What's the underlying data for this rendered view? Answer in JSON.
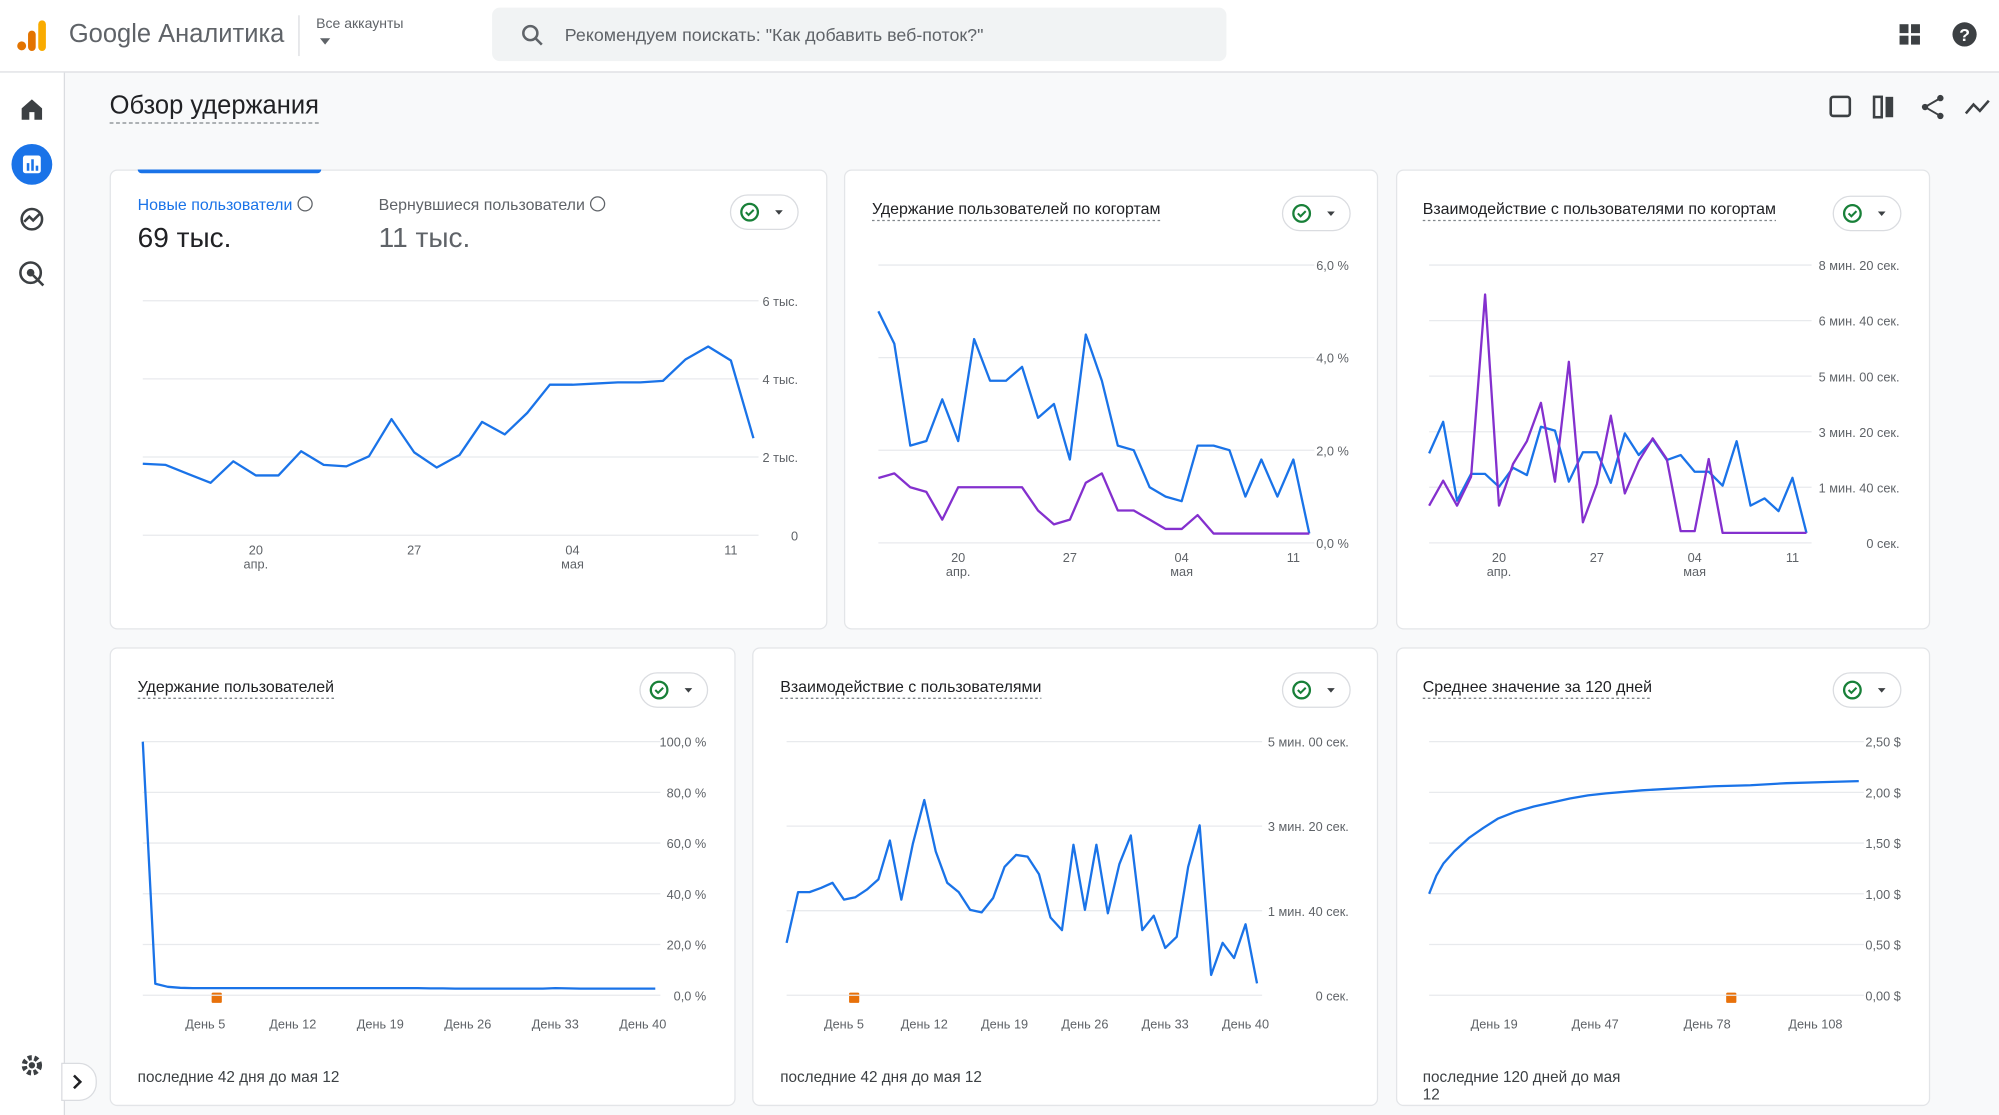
{
  "header": {
    "product": "Google Аналитика",
    "account_label": "Все аккаунты",
    "search_placeholder": "Рекомендуем поискать: \"Как добавить веб-поток?\""
  },
  "page_title": "Обзор удержания",
  "chart_data": [
    {
      "type": "line",
      "metrics": [
        {
          "label": "Новые пользователи",
          "value": "69 тыс."
        },
        {
          "label": "Вернувшиеся пользователи",
          "value": "11 тыс."
        }
      ],
      "categories": [
        null,
        null,
        null,
        null,
        null,
        "20",
        null,
        null,
        null,
        null,
        null,
        null,
        "27",
        null,
        null,
        null,
        null,
        null,
        null,
        "04",
        null,
        null,
        null,
        null,
        null,
        null,
        "11",
        null
      ],
      "category_months": [
        null,
        null,
        null,
        null,
        null,
        "апр.",
        null,
        null,
        null,
        null,
        null,
        null,
        null,
        null,
        null,
        null,
        null,
        null,
        null,
        "мая",
        null,
        null,
        null,
        null,
        null,
        null,
        null,
        null
      ],
      "series": [
        {
          "color": "#1a73e8",
          "values": [
            1830,
            1800,
            1570,
            1340,
            1890,
            1530,
            1530,
            2150,
            1800,
            1760,
            2020,
            2970,
            2120,
            1730,
            2050,
            2900,
            2580,
            3130,
            3850,
            3850,
            3880,
            3910,
            3910,
            3950,
            4500,
            4830,
            4470,
            2480
          ]
        }
      ],
      "ylim": [
        0,
        6000
      ],
      "yticks": [
        0,
        {
          "value": 2000,
          "label": "2 тыс."
        },
        {
          "value": 4000,
          "label": "4 тыс."
        },
        {
          "value": 6000,
          "label": "6 тыс."
        }
      ],
      "grid": true
    },
    {
      "type": "line",
      "title": "Удержание пользователей по когортам",
      "categories": [
        null,
        null,
        null,
        null,
        null,
        "20",
        null,
        null,
        null,
        null,
        null,
        null,
        "27",
        null,
        null,
        null,
        null,
        null,
        null,
        "04",
        null,
        null,
        null,
        null,
        null,
        null,
        "11",
        null
      ],
      "category_months": [
        null,
        null,
        null,
        null,
        null,
        "апр.",
        null,
        null,
        null,
        null,
        null,
        null,
        null,
        null,
        null,
        null,
        null,
        null,
        null,
        "мая",
        null,
        null,
        null,
        null,
        null,
        null,
        null,
        null
      ],
      "series": [
        {
          "color": "#1a73e8",
          "values": [
            5.0,
            4.3,
            2.1,
            2.2,
            3.1,
            2.2,
            4.4,
            3.5,
            3.5,
            3.8,
            2.7,
            3.0,
            1.8,
            4.5,
            3.5,
            2.1,
            2.0,
            1.2,
            1.0,
            0.9,
            2.1,
            2.1,
            2.0,
            1.0,
            1.8,
            1.0,
            1.8,
            0.2
          ]
        },
        {
          "color": "#8430ce",
          "values": [
            1.4,
            1.5,
            1.2,
            1.1,
            0.5,
            1.2,
            1.2,
            1.2,
            1.2,
            1.2,
            0.7,
            0.4,
            0.5,
            1.3,
            1.5,
            0.7,
            0.7,
            0.5,
            0.3,
            0.3,
            0.6,
            0.2,
            0.2,
            0.2,
            0.2,
            0.2,
            0.2,
            0.2
          ]
        }
      ],
      "ylim": [
        0,
        6
      ],
      "yticks": [
        {
          "value": 0,
          "label": "0,0 %"
        },
        {
          "value": 2,
          "label": "2,0 %"
        },
        {
          "value": 4,
          "label": "4,0 %"
        },
        {
          "value": 6,
          "label": "6,0 %"
        }
      ],
      "grid": true
    },
    {
      "type": "line",
      "title": "Взаимодействие с пользователями по когортам",
      "categories": [
        null,
        null,
        null,
        null,
        null,
        "20",
        null,
        null,
        null,
        null,
        null,
        null,
        "27",
        null,
        null,
        null,
        null,
        null,
        null,
        "04",
        null,
        null,
        null,
        null,
        null,
        null,
        "11",
        null
      ],
      "category_months": [
        null,
        null,
        null,
        null,
        null,
        "апр.",
        null,
        null,
        null,
        null,
        null,
        null,
        null,
        null,
        null,
        null,
        null,
        null,
        null,
        "мая",
        null,
        null,
        null,
        null,
        null,
        null,
        null,
        null
      ],
      "series": [
        {
          "color": "#1a73e8",
          "values": [
            161,
            218,
            76,
            124,
            124,
            101,
            135,
            122,
            209,
            202,
            110,
            163,
            163,
            108,
            197,
            158,
            186,
            149,
            158,
            128,
            128,
            103,
            183,
            67,
            80,
            57,
            117,
            18
          ]
        },
        {
          "color": "#8430ce",
          "values": [
            67,
            112,
            67,
            119,
            447,
            67,
            142,
            183,
            252,
            110,
            326,
            37,
            106,
            229,
            89,
            147,
            188,
            151,
            21,
            21,
            151,
            18,
            18,
            18,
            18,
            18,
            18,
            18
          ]
        }
      ],
      "ylim": [
        0,
        500
      ],
      "yticks": [
        {
          "value": 0,
          "label": "0 сек."
        },
        {
          "value": 100,
          "label": "1 мин. 40 сек."
        },
        {
          "value": 200,
          "label": "3 мин. 20 сек."
        },
        {
          "value": 300,
          "label": "5 мин. 00 сек."
        },
        {
          "value": 400,
          "label": "6 мин. 40 сек."
        },
        {
          "value": 500,
          "label": "8 мин. 20 сек."
        }
      ],
      "grid": true
    },
    {
      "type": "line",
      "title": "Удержание пользователей",
      "footnote": "последние 42 дня до мая 12",
      "x": [
        0,
        1,
        2,
        3,
        4,
        5,
        6,
        7,
        8,
        9,
        10,
        11,
        12,
        13,
        14,
        15,
        16,
        17,
        18,
        19,
        20,
        21,
        22,
        23,
        24,
        25,
        26,
        27,
        28,
        29,
        30,
        31,
        32,
        33,
        34,
        35,
        36,
        37,
        38,
        39,
        40,
        41
      ],
      "series": [
        {
          "color": "#1a73e8",
          "values": [
            100,
            4.5,
            3.3,
            2.9,
            2.8,
            2.8,
            2.8,
            2.8,
            2.8,
            2.8,
            2.8,
            2.8,
            2.8,
            2.8,
            2.8,
            2.8,
            2.8,
            2.8,
            2.8,
            2.8,
            2.8,
            2.8,
            2.8,
            2.7,
            2.7,
            2.6,
            2.6,
            2.6,
            2.6,
            2.6,
            2.6,
            2.6,
            2.6,
            2.8,
            2.7,
            2.6,
            2.6,
            2.6,
            2.6,
            2.6,
            2.6,
            2.6
          ]
        }
      ],
      "xlim": [
        0,
        41
      ],
      "xticks": [
        {
          "value": 5,
          "label": "День 5"
        },
        {
          "value": 12,
          "label": "День 12"
        },
        {
          "value": 19,
          "label": "День 19"
        },
        {
          "value": 26,
          "label": "День 26"
        },
        {
          "value": 33,
          "label": "День 33"
        },
        {
          "value": 40,
          "label": "День 40"
        }
      ],
      "ylim": [
        0,
        100
      ],
      "yticks": [
        {
          "value": 0,
          "label": "0,0 %"
        },
        {
          "value": 20,
          "label": "20,0 %"
        },
        {
          "value": 40,
          "label": "40,0 %"
        },
        {
          "value": 60,
          "label": "60,0 %"
        },
        {
          "value": 80,
          "label": "80,0 %"
        },
        {
          "value": 100,
          "label": "100,0 %"
        }
      ],
      "grid": true
    },
    {
      "type": "line",
      "title": "Взаимодействие с пользователями",
      "footnote": "последние 42 дня до мая 12",
      "x": [
        0,
        1,
        2,
        3,
        4,
        5,
        6,
        7,
        8,
        9,
        10,
        11,
        12,
        13,
        14,
        15,
        16,
        17,
        18,
        19,
        20,
        21,
        22,
        23,
        24,
        25,
        26,
        27,
        28,
        29,
        30,
        31,
        32,
        33,
        34,
        35,
        36,
        37,
        38,
        39,
        40,
        41
      ],
      "series": [
        {
          "color": "#1a73e8",
          "values": [
            62,
            122,
            122,
            127,
            133,
            113,
            116,
            125,
            137,
            183,
            113,
            179,
            231,
            170,
            133,
            122,
            101,
            98,
            115,
            152,
            166,
            164,
            143,
            92,
            77,
            178,
            101,
            178,
            97,
            155,
            189,
            77,
            94,
            56,
            69,
            152,
            201,
            24,
            62,
            44,
            84,
            14
          ]
        }
      ],
      "xlim": [
        0,
        41
      ],
      "xticks": [
        {
          "value": 5,
          "label": "День 5"
        },
        {
          "value": 12,
          "label": "День 12"
        },
        {
          "value": 19,
          "label": "День 19"
        },
        {
          "value": 26,
          "label": "День 26"
        },
        {
          "value": 33,
          "label": "День 33"
        },
        {
          "value": 40,
          "label": "День 40"
        }
      ],
      "ylim": [
        0,
        300
      ],
      "yticks": [
        {
          "value": 0,
          "label": "0 сек."
        },
        {
          "value": 100,
          "label": "1 мин. 40 сек."
        },
        {
          "value": 200,
          "label": "3 мин. 20 сек."
        },
        {
          "value": 300,
          "label": "5 мин. 00 сек."
        }
      ],
      "grid": true
    },
    {
      "type": "line",
      "title": "Среднее значение за 120 дней",
      "footnote": "последние 120 дней до мая 12",
      "x": [
        1,
        3,
        5,
        8,
        12,
        16,
        20,
        25,
        30,
        35,
        40,
        45,
        50,
        60,
        70,
        80,
        90,
        100,
        110,
        120
      ],
      "series": [
        {
          "color": "#1a73e8",
          "values": [
            1.0,
            1.18,
            1.3,
            1.42,
            1.55,
            1.65,
            1.74,
            1.81,
            1.86,
            1.9,
            1.94,
            1.97,
            1.99,
            2.02,
            2.04,
            2.06,
            2.07,
            2.09,
            2.1,
            2.11
          ]
        }
      ],
      "xlim": [
        1,
        120
      ],
      "xticks": [
        {
          "value": 19,
          "label": "День 19"
        },
        {
          "value": 47,
          "label": "День 47"
        },
        {
          "value": 78,
          "label": "День 78"
        },
        {
          "value": 108,
          "label": "День 108"
        }
      ],
      "ylim": [
        0,
        2.5
      ],
      "yticks": [
        {
          "value": 0,
          "label": "0,00 $"
        },
        {
          "value": 0.5,
          "label": "0,50 $"
        },
        {
          "value": 1,
          "label": "1,00 $"
        },
        {
          "value": 1.5,
          "label": "1,50 $"
        },
        {
          "value": 2,
          "label": "2,00 $"
        },
        {
          "value": 2.5,
          "label": "2,50 $"
        }
      ],
      "grid": true
    }
  ]
}
